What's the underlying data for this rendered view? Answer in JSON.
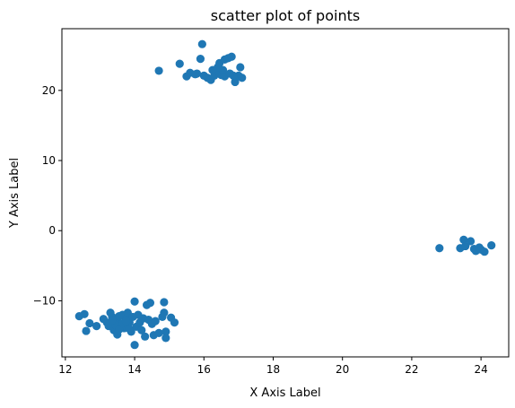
{
  "chart_data": {
    "type": "scatter",
    "title": "scatter plot of points",
    "xlabel": "X Axis Label",
    "ylabel": "Y Axis Label",
    "xlim": [
      11.9,
      24.8
    ],
    "ylim": [
      -18.0,
      28.8
    ],
    "xticks": [
      12,
      14,
      16,
      18,
      20,
      22,
      24
    ],
    "yticks": [
      -10,
      0,
      10,
      20
    ],
    "grid": false,
    "legend": false,
    "marker_color": "#1f77b4",
    "series": [
      {
        "points": [
          [
            14.7,
            22.8
          ],
          [
            15.3,
            23.8
          ],
          [
            15.5,
            22.0
          ],
          [
            15.6,
            22.5
          ],
          [
            15.8,
            22.4
          ],
          [
            15.9,
            24.5
          ],
          [
            15.95,
            26.6
          ],
          [
            16.0,
            22.1
          ],
          [
            16.1,
            21.8
          ],
          [
            16.2,
            21.5
          ],
          [
            16.3,
            22.1
          ],
          [
            16.4,
            22.7
          ],
          [
            16.4,
            23.3
          ],
          [
            16.45,
            23.9
          ],
          [
            16.5,
            22.2
          ],
          [
            16.6,
            24.4
          ],
          [
            16.6,
            22.0
          ],
          [
            16.7,
            24.6
          ],
          [
            16.75,
            22.4
          ],
          [
            16.8,
            24.8
          ],
          [
            16.9,
            21.2
          ],
          [
            17.0,
            22.1
          ],
          [
            17.05,
            23.3
          ],
          [
            17.1,
            21.8
          ],
          [
            16.55,
            22.9
          ],
          [
            16.25,
            22.9
          ],
          [
            15.75,
            22.3
          ],
          [
            16.85,
            22.1
          ],
          [
            22.8,
            -2.5
          ],
          [
            23.4,
            -2.5
          ],
          [
            23.5,
            -1.3
          ],
          [
            23.55,
            -2.2
          ],
          [
            23.7,
            -1.5
          ],
          [
            23.8,
            -2.6
          ],
          [
            23.85,
            -2.9
          ],
          [
            23.95,
            -2.4
          ],
          [
            24.0,
            -2.7
          ],
          [
            24.1,
            -3.0
          ],
          [
            24.3,
            -2.1
          ],
          [
            12.4,
            -12.2
          ],
          [
            12.55,
            -11.9
          ],
          [
            12.6,
            -14.3
          ],
          [
            12.7,
            -13.2
          ],
          [
            12.9,
            -13.6
          ],
          [
            13.1,
            -12.6
          ],
          [
            13.2,
            -13.1
          ],
          [
            13.25,
            -13.6
          ],
          [
            13.3,
            -11.7
          ],
          [
            13.35,
            -12.3
          ],
          [
            13.4,
            -14.2
          ],
          [
            13.45,
            -12.9
          ],
          [
            13.5,
            -14.8
          ],
          [
            13.55,
            -12.2
          ],
          [
            13.6,
            -13.3
          ],
          [
            13.65,
            -12.0
          ],
          [
            13.7,
            -13.9
          ],
          [
            13.75,
            -12.6
          ],
          [
            13.8,
            -11.7
          ],
          [
            13.85,
            -13.1
          ],
          [
            13.9,
            -14.4
          ],
          [
            13.95,
            -12.3
          ],
          [
            14.0,
            -10.1
          ],
          [
            14.0,
            -16.3
          ],
          [
            14.05,
            -13.7
          ],
          [
            14.1,
            -12.0
          ],
          [
            14.15,
            -13.1
          ],
          [
            14.2,
            -14.2
          ],
          [
            14.25,
            -12.5
          ],
          [
            14.3,
            -15.1
          ],
          [
            14.35,
            -10.6
          ],
          [
            14.4,
            -12.7
          ],
          [
            14.45,
            -10.3
          ],
          [
            14.5,
            -13.3
          ],
          [
            14.55,
            -14.9
          ],
          [
            14.6,
            -12.9
          ],
          [
            14.7,
            -14.6
          ],
          [
            14.8,
            -12.3
          ],
          [
            14.85,
            -10.2
          ],
          [
            14.9,
            -14.4
          ],
          [
            14.9,
            -15.3
          ],
          [
            15.05,
            -12.4
          ],
          [
            15.15,
            -13.1
          ],
          [
            14.85,
            -11.7
          ],
          [
            13.45,
            -13.5
          ],
          [
            13.55,
            -14.1
          ],
          [
            13.35,
            -12.8
          ],
          [
            13.65,
            -13.2
          ],
          [
            13.75,
            -12.9
          ],
          [
            13.85,
            -14.0
          ]
        ]
      }
    ]
  }
}
